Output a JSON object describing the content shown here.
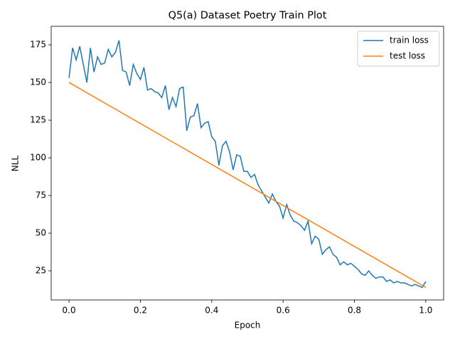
{
  "chart_data": {
    "type": "line",
    "title": "Q5(a) Dataset Poetry Train Plot",
    "xlabel": "Epoch",
    "ylabel": "NLL",
    "xlim": [
      -0.05,
      1.05
    ],
    "ylim": [
      5.7,
      187.3
    ],
    "xticks": [
      {
        "value": 0,
        "label": "0.0"
      },
      {
        "value": 0.2,
        "label": "0.2"
      },
      {
        "value": 0.4,
        "label": "0.4"
      },
      {
        "value": 0.6,
        "label": "0.6"
      },
      {
        "value": 0.8,
        "label": "0.8"
      },
      {
        "value": 1,
        "label": "1.0"
      }
    ],
    "yticks": [
      25,
      50,
      75,
      100,
      125,
      150,
      175
    ],
    "legend": "upper right",
    "series": [
      {
        "name": "train loss",
        "color": "#1f77b4",
        "x": [
          0,
          0.01,
          0.02,
          0.03,
          0.04,
          0.05,
          0.06,
          0.07,
          0.08,
          0.09,
          0.1,
          0.11,
          0.12,
          0.13,
          0.14,
          0.15,
          0.16,
          0.17,
          0.18,
          0.19,
          0.2,
          0.21,
          0.22,
          0.23,
          0.24,
          0.25,
          0.26,
          0.27,
          0.28,
          0.29,
          0.3,
          0.31,
          0.32,
          0.33,
          0.34,
          0.35,
          0.36,
          0.37,
          0.38,
          0.39,
          0.4,
          0.41,
          0.42,
          0.43,
          0.44,
          0.45,
          0.46,
          0.47,
          0.48,
          0.49,
          0.5,
          0.51,
          0.52,
          0.53,
          0.54,
          0.55,
          0.56,
          0.57,
          0.58,
          0.59,
          0.6,
          0.61,
          0.62,
          0.63,
          0.64,
          0.65,
          0.66,
          0.67,
          0.68,
          0.69,
          0.7,
          0.71,
          0.72,
          0.73,
          0.74,
          0.75,
          0.76,
          0.77,
          0.78,
          0.79,
          0.8,
          0.81,
          0.82,
          0.83,
          0.84,
          0.85,
          0.86,
          0.87,
          0.88,
          0.89,
          0.9,
          0.91,
          0.92,
          0.93,
          0.94,
          0.95,
          0.96,
          0.97,
          0.98,
          0.99,
          1
        ],
        "values": [
          153,
          173,
          165,
          174,
          162,
          150,
          173,
          157,
          167,
          162,
          163,
          172,
          167,
          170,
          178,
          158,
          157,
          148,
          162,
          156,
          152,
          160,
          145,
          146,
          144,
          143,
          140,
          148,
          132,
          140,
          134,
          146,
          147,
          118,
          127,
          128,
          136,
          120,
          123,
          124,
          114,
          111,
          95,
          108,
          111,
          104,
          92,
          102,
          101,
          91,
          91,
          87,
          89,
          82,
          78,
          74,
          70,
          76,
          71,
          68,
          60,
          69,
          62,
          58,
          57,
          55,
          52,
          58,
          43,
          48,
          46,
          36,
          39,
          41,
          36,
          34,
          29,
          31,
          29,
          30,
          28,
          26,
          23,
          22,
          25,
          22,
          20,
          21,
          21,
          18,
          19,
          17,
          18,
          17,
          17,
          16,
          15,
          16,
          15,
          14,
          18
        ]
      },
      {
        "name": "test loss",
        "color": "#ff7f0e",
        "x": [
          0,
          1
        ],
        "values": [
          150,
          14
        ]
      }
    ]
  }
}
